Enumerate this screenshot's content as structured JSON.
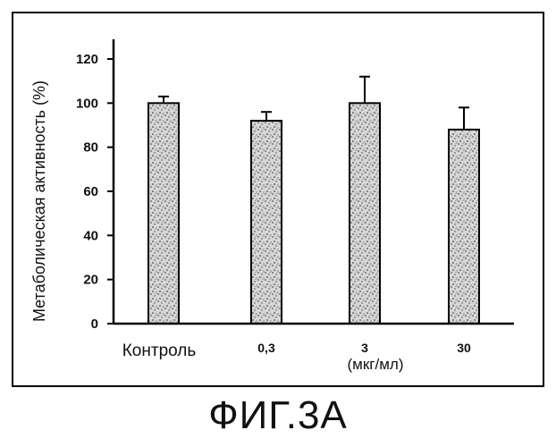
{
  "figure_caption": "ФИГ.3А",
  "chart_data": {
    "type": "bar",
    "ylabel": "Метаболическая активность (%)",
    "xlabel": "(мкг/мл)",
    "categories": [
      "Контроль",
      "0,3",
      "3",
      "30"
    ],
    "values": [
      100,
      92,
      100,
      88
    ],
    "errors": [
      3,
      4,
      12,
      10
    ],
    "ylim": [
      0,
      120
    ],
    "yticks": [
      "0",
      "20",
      "40",
      "60",
      "80",
      "100",
      "120"
    ],
    "grid": false,
    "bar_fill": "stippled grey"
  }
}
